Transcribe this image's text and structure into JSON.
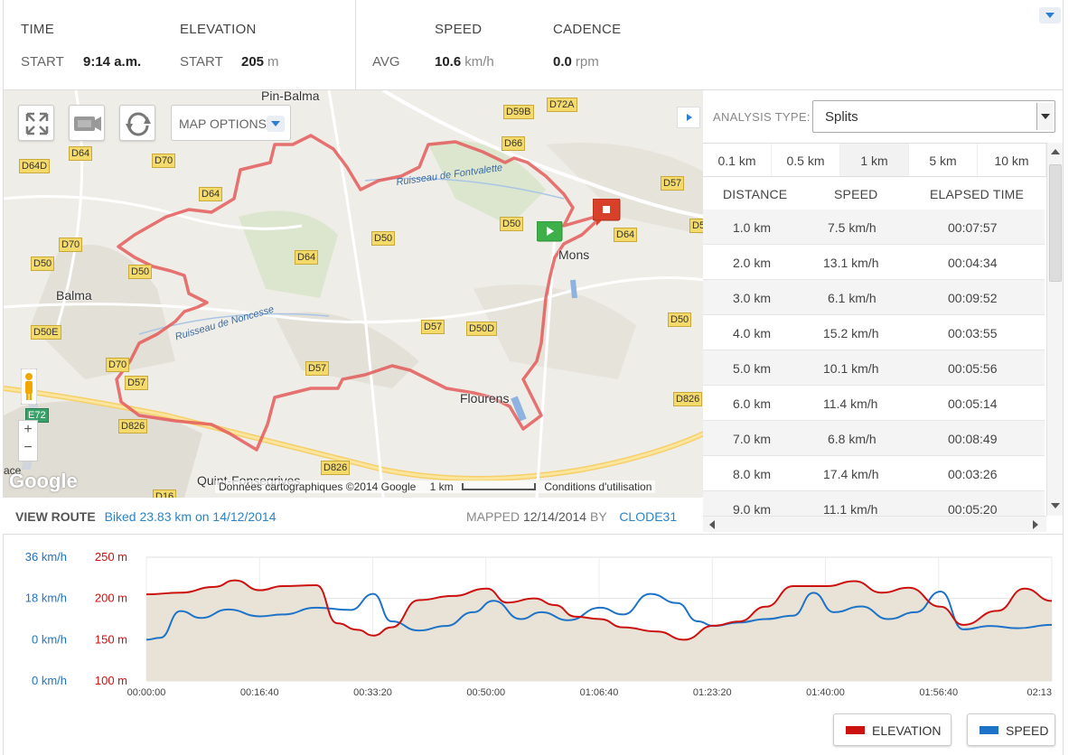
{
  "stats": {
    "time": {
      "header": "TIME",
      "label": "START",
      "value": "9:14 a.m."
    },
    "elevation": {
      "header": "ELEVATION",
      "label": "START",
      "value": "205",
      "unit": "m"
    },
    "speed": {
      "header": "SPEED",
      "label": "AVG",
      "value": "10.6",
      "unit": "km/h"
    },
    "cadence": {
      "header": "CADENCE",
      "value": "0.0",
      "unit": "rpm"
    }
  },
  "map": {
    "options_label": "MAP OPTIONS",
    "zoom_in": "+",
    "zoom_out": "−",
    "towns": [
      "Pin-Balma",
      "Balma",
      "Mons",
      "Flourens",
      "Quint-Fonsegrives"
    ],
    "streams": [
      "Ruisseau de Fontvalette",
      "Ruisseau de Noncesse"
    ],
    "roads": [
      "D59B",
      "D72A",
      "D66",
      "D64D",
      "D64",
      "D70",
      "D57",
      "D64",
      "D70",
      "D50",
      "D50",
      "D50",
      "D64",
      "D50",
      "D50",
      "D64",
      "D57",
      "D50D",
      "D50",
      "D50E",
      "D70",
      "D57",
      "D57",
      "D826",
      "E72",
      "D826",
      "D826",
      "D16"
    ],
    "attribution": "Données cartographiques ©2014 Google",
    "scale": "1 km",
    "terms": "Conditions d'utilisation",
    "logo": "Google",
    "corner_text": "ace"
  },
  "route": {
    "view_label": "VIEW ROUTE",
    "link_text": "Biked 23.83 km on 14/12/2014",
    "mapped_label": "MAPPED",
    "mapped_date": "12/14/2014",
    "by_label": "BY",
    "user": "CLODE31"
  },
  "analysis": {
    "type_label": "ANALYSIS TYPE:",
    "type_value": "Splits",
    "tabs": [
      "0.1 km",
      "0.5 km",
      "1 km",
      "5 km",
      "10 km"
    ],
    "active_tab": "1 km",
    "columns": [
      "DISTANCE",
      "SPEED",
      "ELAPSED TIME"
    ],
    "rows": [
      {
        "distance": "1.0 km",
        "speed": "7.5 km/h",
        "elapsed": "00:07:57"
      },
      {
        "distance": "2.0 km",
        "speed": "13.1 km/h",
        "elapsed": "00:04:34"
      },
      {
        "distance": "3.0 km",
        "speed": "6.1 km/h",
        "elapsed": "00:09:52"
      },
      {
        "distance": "4.0 km",
        "speed": "15.2 km/h",
        "elapsed": "00:03:55"
      },
      {
        "distance": "5.0 km",
        "speed": "10.1 km/h",
        "elapsed": "00:05:56"
      },
      {
        "distance": "6.0 km",
        "speed": "11.4 km/h",
        "elapsed": "00:05:14"
      },
      {
        "distance": "7.0 km",
        "speed": "6.8 km/h",
        "elapsed": "00:08:49"
      },
      {
        "distance": "8.0 km",
        "speed": "17.4 km/h",
        "elapsed": "00:03:26"
      },
      {
        "distance": "9.0 km",
        "speed": "11.1 km/h",
        "elapsed": "00:05:20"
      }
    ]
  },
  "chart_data": {
    "type": "line",
    "series": [
      {
        "name": "ELEVATION",
        "color": "#cc1111",
        "unit": "m",
        "x": [
          "00:00:00",
          "00:05:00",
          "00:10:00",
          "00:13:00",
          "00:16:40",
          "00:20:00",
          "00:25:00",
          "00:28:00",
          "00:31:00",
          "00:33:20",
          "00:36:00",
          "00:40:00",
          "00:45:00",
          "00:50:00",
          "00:53:00",
          "00:57:00",
          "01:00:00",
          "01:03:00",
          "01:06:40",
          "01:10:00",
          "01:15:00",
          "01:19:00",
          "01:23:20",
          "01:27:00",
          "01:31:00",
          "01:35:00",
          "01:40:00",
          "01:44:00",
          "01:48:00",
          "01:52:00",
          "01:56:40",
          "02:00:00",
          "02:05:00",
          "02:09:00",
          "02:13:00"
        ],
        "values": [
          205,
          207,
          214,
          222,
          210,
          215,
          216,
          170,
          162,
          155,
          165,
          198,
          203,
          212,
          195,
          200,
          192,
          178,
          175,
          165,
          160,
          150,
          167,
          172,
          190,
          215,
          215,
          221,
          207,
          213,
          190,
          168,
          185,
          212,
          197
        ]
      },
      {
        "name": "SPEED",
        "color": "#1e73c8",
        "unit": "km/h",
        "x": [
          "00:00:00",
          "00:02:00",
          "00:05:00",
          "00:08:00",
          "00:12:00",
          "00:16:40",
          "00:20:00",
          "00:25:00",
          "00:30:00",
          "00:33:20",
          "00:36:00",
          "00:40:00",
          "00:44:00",
          "00:48:00",
          "00:51:00",
          "00:55:00",
          "00:58:00",
          "01:02:00",
          "01:06:40",
          "01:10:00",
          "01:14:00",
          "01:18:00",
          "01:21:00",
          "01:23:20",
          "01:27:00",
          "01:31:00",
          "01:35:00",
          "01:38:00",
          "01:41:00",
          "01:45:00",
          "01:49:00",
          "01:53:00",
          "01:56:40",
          "02:00:00",
          "02:04:00",
          "02:08:00",
          "02:13:00"
        ],
        "values": [
          0,
          0.8,
          12.5,
          9.5,
          13.2,
          10.2,
          11.0,
          14.0,
          13.0,
          20.0,
          8.0,
          4.0,
          6.0,
          12.0,
          17.0,
          9.0,
          12.0,
          8.5,
          14.0,
          11.0,
          20.0,
          16.0,
          8.0,
          6.0,
          7.5,
          9.0,
          10.5,
          20.5,
          12.0,
          14.5,
          9.0,
          12.0,
          21.0,
          4.5,
          6.0,
          5.0,
          6.5
        ]
      }
    ],
    "y_axes": [
      {
        "label_side": "left",
        "unit": "km/h",
        "ticks": [
          "36 km/h",
          "18 km/h",
          "0 km/h",
          "0 km/h"
        ]
      },
      {
        "label_side": "left",
        "unit": "m",
        "ticks": [
          "250 m",
          "200 m",
          "150 m",
          "100 m"
        ],
        "range": [
          100,
          250
        ]
      }
    ],
    "x_ticks": [
      "00:00:00",
      "00:16:40",
      "00:33:20",
      "00:50:00",
      "01:06:40",
      "01:23:20",
      "01:40:00",
      "01:56:40",
      "02:13"
    ],
    "speed_range": [
      -18,
      36
    ],
    "legend": [
      "ELEVATION",
      "SPEED"
    ],
    "grid": true
  }
}
